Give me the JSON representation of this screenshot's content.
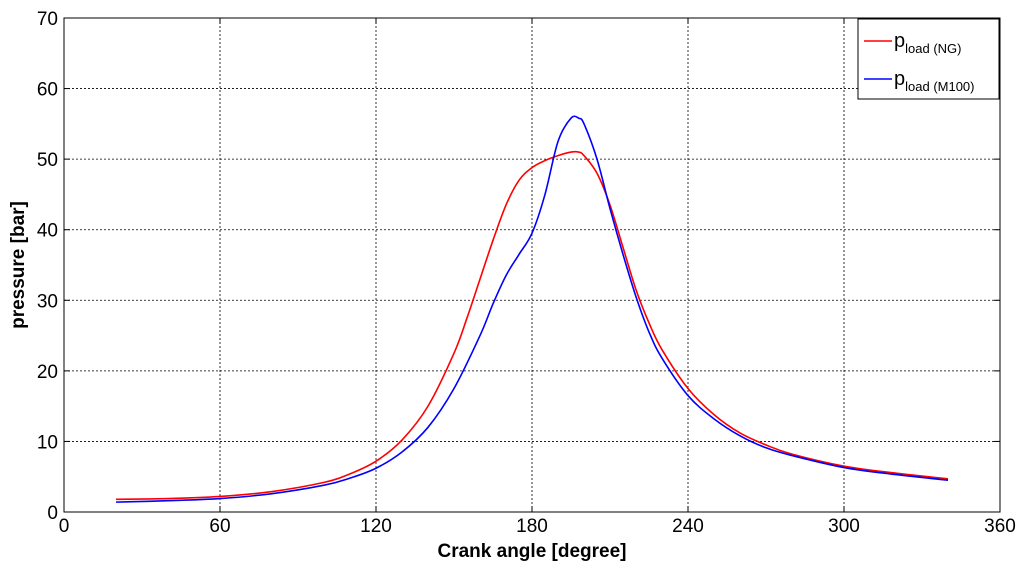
{
  "chart_data": {
    "type": "line",
    "xlabel": "Crank angle [degree]",
    "ylabel": "pressure [bar]",
    "xlim": [
      0,
      360
    ],
    "ylim": [
      0,
      70
    ],
    "xticks": [
      0,
      60,
      120,
      180,
      240,
      300,
      360
    ],
    "yticks": [
      0,
      10,
      20,
      30,
      40,
      50,
      60,
      70
    ],
    "grid": true,
    "legend_position": "top-right",
    "series": [
      {
        "name": "p",
        "name_subscript": "load (NG)",
        "color": "#ff0000",
        "x": [
          20,
          40,
          60,
          80,
          100,
          110,
          120,
          130,
          140,
          150,
          155,
          160,
          165,
          170,
          175,
          180,
          185,
          190,
          195,
          198,
          200,
          205,
          210,
          215,
          220,
          225,
          230,
          240,
          250,
          260,
          270,
          280,
          300,
          320,
          340
        ],
        "y": [
          1.8,
          1.9,
          2.2,
          2.9,
          4.2,
          5.4,
          7.2,
          10.2,
          15.0,
          22.5,
          27.5,
          33.0,
          38.5,
          43.5,
          47.0,
          48.8,
          49.8,
          50.5,
          51.0,
          51.0,
          50.5,
          48.0,
          43.5,
          37.5,
          31.5,
          26.8,
          23.0,
          17.5,
          13.8,
          11.2,
          9.5,
          8.2,
          6.5,
          5.5,
          4.7
        ]
      },
      {
        "name": "p",
        "name_subscript": "load (M100)",
        "color": "#0000ff",
        "x": [
          20,
          40,
          60,
          80,
          100,
          110,
          120,
          130,
          140,
          150,
          160,
          165,
          170,
          175,
          180,
          185,
          190,
          195,
          198,
          200,
          205,
          210,
          215,
          220,
          225,
          230,
          240,
          250,
          260,
          270,
          280,
          300,
          320,
          340
        ],
        "y": [
          1.4,
          1.6,
          1.9,
          2.6,
          3.8,
          4.8,
          6.2,
          8.5,
          12.0,
          17.5,
          25.0,
          29.5,
          33.5,
          36.5,
          39.5,
          45.0,
          52.5,
          55.8,
          55.8,
          55.0,
          50.0,
          43.0,
          36.5,
          30.5,
          25.5,
          21.8,
          16.5,
          13.2,
          10.8,
          9.1,
          8.0,
          6.3,
          5.3,
          4.5
        ]
      }
    ]
  }
}
